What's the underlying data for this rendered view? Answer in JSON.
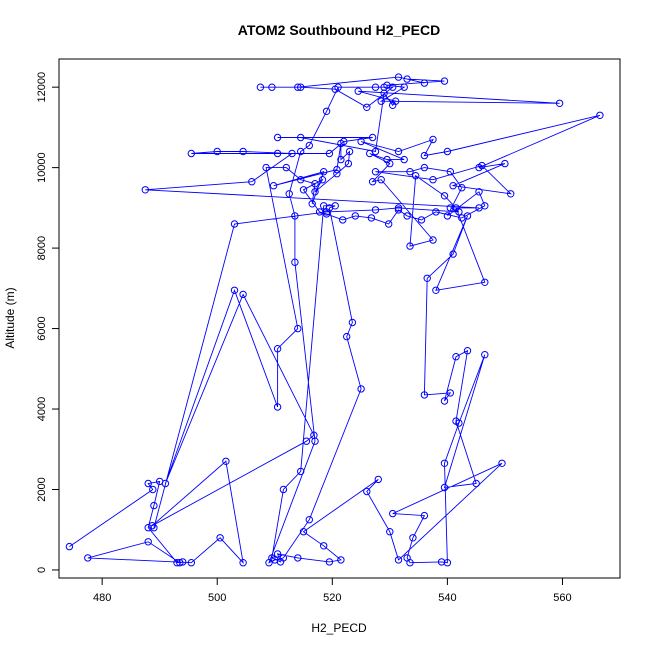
{
  "chart_data": {
    "type": "line",
    "title": "ATOM2 Southbound H2_PECD",
    "xlabel": "H2_PECD",
    "ylabel": "Altitude (m)",
    "xlim": [
      472.5,
      570
    ],
    "ylim": [
      -200,
      12700
    ],
    "xticks": [
      480,
      500,
      520,
      540,
      560
    ],
    "yticks": [
      0,
      2000,
      4000,
      6000,
      8000,
      10000,
      12000
    ],
    "grid": false,
    "series_color": "#0000ff",
    "marker": "open-circle",
    "series": [
      {
        "points": [
          [
            474.3,
            580
          ],
          [
            488.8,
            2000
          ],
          [
            488,
            2150
          ],
          [
            490,
            2200
          ],
          [
            489,
            1600
          ],
          [
            488,
            1050
          ],
          [
            493,
            180
          ],
          [
            494,
            200
          ],
          [
            493.5,
            180
          ],
          [
            488,
            700
          ],
          [
            477.5,
            300
          ],
          [
            495.5,
            180
          ],
          [
            500.5,
            800
          ],
          [
            504.5,
            180
          ],
          [
            501.5,
            2700
          ],
          [
            488.7,
            1100
          ],
          [
            515.5,
            3200
          ],
          [
            516.8,
            3350
          ],
          [
            504.5,
            6850
          ],
          [
            491,
            2150
          ],
          [
            503,
            6950
          ],
          [
            510.5,
            4050
          ],
          [
            510.5,
            5500
          ],
          [
            514,
            6000
          ],
          [
            508.5,
            10000
          ],
          [
            512,
            10000
          ],
          [
            514.5,
            9700
          ],
          [
            517,
            9600
          ],
          [
            516.5,
            9100
          ],
          [
            518.5,
            9900
          ],
          [
            509.8,
            9550
          ],
          [
            520.8,
            9950
          ],
          [
            521.5,
            10600
          ],
          [
            521.5,
            10200
          ],
          [
            523,
            10400
          ],
          [
            522.8,
            10100
          ],
          [
            520.8,
            9850
          ],
          [
            517,
            9400
          ],
          [
            518.3,
            9700
          ],
          [
            515,
            9450
          ],
          [
            517.8,
            8900
          ],
          [
            519,
            8850
          ],
          [
            521.8,
            8700
          ],
          [
            524,
            8800
          ],
          [
            526.8,
            8750
          ],
          [
            529.8,
            8600
          ],
          [
            531.5,
            8950
          ],
          [
            533,
            8800
          ],
          [
            535.5,
            8700
          ],
          [
            538,
            8900
          ],
          [
            542.5,
            8750
          ],
          [
            546.5,
            9050
          ],
          [
            545.5,
            9400
          ],
          [
            540,
            8800
          ],
          [
            542.5,
            9500
          ],
          [
            540.5,
            9900
          ],
          [
            536,
            10000
          ],
          [
            533.5,
            9900
          ],
          [
            527.5,
            9900
          ],
          [
            537.5,
            9700
          ],
          [
            546,
            10050
          ],
          [
            551,
            9350
          ],
          [
            541,
            9550
          ],
          [
            550,
            10100
          ],
          [
            545.5,
            10000
          ],
          [
            566.5,
            11300
          ],
          [
            540,
            10400
          ],
          [
            536,
            10300
          ],
          [
            537.5,
            10700
          ],
          [
            531.5,
            10400
          ],
          [
            525,
            10650
          ],
          [
            532.5,
            10200
          ],
          [
            529.5,
            10200
          ],
          [
            526.5,
            10350
          ],
          [
            530,
            10100
          ],
          [
            527,
            9650
          ],
          [
            528.5,
            9700
          ],
          [
            537.5,
            8200
          ],
          [
            533.5,
            8050
          ],
          [
            534.5,
            9800
          ],
          [
            539.5,
            9300
          ],
          [
            541.5,
            9000
          ],
          [
            546.5,
            7150
          ],
          [
            538,
            6950
          ],
          [
            543.5,
            8800
          ],
          [
            541,
            7850
          ],
          [
            536.5,
            7250
          ],
          [
            536,
            4350
          ],
          [
            540.5,
            4400
          ],
          [
            539.5,
            4200
          ],
          [
            541.5,
            5300
          ],
          [
            543.5,
            5450
          ],
          [
            541.5,
            3700
          ],
          [
            545,
            2150
          ],
          [
            539.5,
            2050
          ],
          [
            546.5,
            5350
          ],
          [
            542,
            3650
          ],
          [
            539.5,
            2650
          ],
          [
            540,
            180
          ],
          [
            539,
            200
          ],
          [
            533.5,
            180
          ],
          [
            533,
            300
          ],
          [
            534,
            800
          ],
          [
            536,
            1350
          ],
          [
            530.5,
            1400
          ],
          [
            549.5,
            2650
          ],
          [
            531.5,
            250
          ],
          [
            530,
            950
          ],
          [
            526,
            1950
          ],
          [
            528,
            2250
          ],
          [
            515,
            950
          ],
          [
            518.5,
            600
          ],
          [
            521.5,
            250
          ],
          [
            519.5,
            200
          ],
          [
            514,
            300
          ],
          [
            510.5,
            400
          ],
          [
            511,
            200
          ],
          [
            509.5,
            300
          ],
          [
            511.5,
            2000
          ],
          [
            514.5,
            2450
          ],
          [
            518.5,
            9050
          ],
          [
            520.5,
            9050
          ],
          [
            519.5,
            9000
          ],
          [
            523.5,
            6150
          ],
          [
            522.5,
            5800
          ],
          [
            525,
            4500
          ],
          [
            516,
            1250
          ],
          [
            511.5,
            300
          ],
          [
            510,
            250
          ],
          [
            509,
            180
          ],
          [
            517,
            3200
          ],
          [
            513.5,
            7650
          ],
          [
            513.5,
            8800
          ],
          [
            512.5,
            9350
          ],
          [
            514.5,
            10400
          ],
          [
            516,
            10550
          ],
          [
            519,
            11400
          ],
          [
            521,
            12000
          ],
          [
            527.5,
            12000
          ],
          [
            529,
            12000
          ],
          [
            530.5,
            12000
          ],
          [
            526,
            11500
          ],
          [
            520.5,
            11950
          ],
          [
            514.5,
            12000
          ],
          [
            509.5,
            12000
          ],
          [
            507.5,
            12000
          ],
          [
            514,
            12000
          ],
          [
            531.5,
            12250
          ],
          [
            536,
            12100
          ],
          [
            533,
            12200
          ],
          [
            539.5,
            12150
          ],
          [
            529.5,
            12050
          ],
          [
            532.5,
            12000
          ],
          [
            528.5,
            11650
          ],
          [
            559.5,
            11600
          ],
          [
            524.5,
            11900
          ],
          [
            531,
            11650
          ],
          [
            530.5,
            11550
          ],
          [
            529,
            11850
          ],
          [
            527.5,
            10400
          ],
          [
            514.5,
            10750
          ],
          [
            510.5,
            10750
          ],
          [
            527,
            10750
          ],
          [
            522,
            10650
          ],
          [
            519.5,
            10350
          ],
          [
            510.5,
            10350
          ],
          [
            495.5,
            10350
          ],
          [
            500,
            10400
          ],
          [
            504.5,
            10400
          ],
          [
            513,
            10350
          ],
          [
            506,
            9650
          ],
          [
            487.5,
            9450
          ],
          [
            545.5,
            9000
          ],
          [
            540.5,
            9000
          ],
          [
            542,
            8900
          ],
          [
            531.5,
            9000
          ],
          [
            527.5,
            8950
          ],
          [
            519,
            8900
          ],
          [
            503,
            8600
          ],
          [
            489,
            1050
          ]
        ]
      }
    ]
  }
}
